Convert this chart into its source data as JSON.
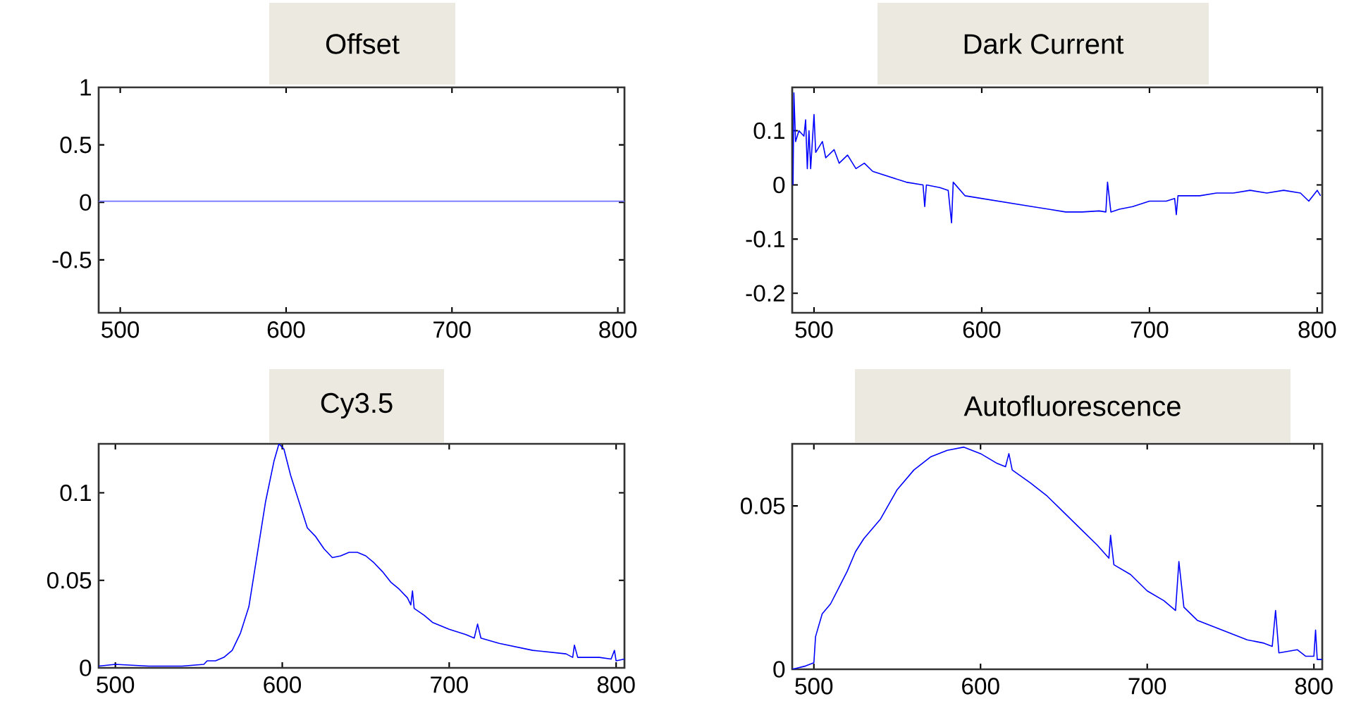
{
  "chart_data": [
    {
      "type": "line",
      "title": "Offset",
      "color": "#7070ff",
      "xlim": [
        487,
        804
      ],
      "ylim": [
        -0.96,
        1
      ],
      "xticks": [
        500,
        600,
        700,
        800
      ],
      "yticks": [
        -0.5,
        0,
        0.5,
        1
      ],
      "x": [
        487,
        804
      ],
      "values": [
        0.01,
        0.01
      ]
    },
    {
      "type": "line",
      "title": "Dark Current",
      "color": "#0000ff",
      "xlim": [
        487,
        803
      ],
      "ylim": [
        -0.236,
        0.18
      ],
      "xticks": [
        500,
        600,
        700,
        800
      ],
      "yticks": [
        -0.2,
        -0.1,
        0,
        0.1
      ],
      "x": [
        487.5,
        488,
        489,
        490,
        491,
        493,
        494,
        495,
        496,
        497,
        498,
        500,
        501,
        505,
        507,
        512,
        515,
        520,
        525,
        530,
        535,
        540,
        545,
        550,
        555,
        565,
        566,
        567,
        575,
        580,
        582,
        583,
        590,
        600,
        610,
        620,
        630,
        640,
        650,
        660,
        670,
        674,
        675,
        676,
        677,
        682,
        690,
        700,
        710,
        715,
        716,
        717,
        730,
        740,
        750,
        760,
        770,
        780,
        790,
        795,
        800,
        802
      ],
      "values": [
        0.0,
        0.17,
        0.08,
        null,
        0.1,
        null,
        0.09,
        0.12,
        0.03,
        0.1,
        0.03,
        0.13,
        0.06,
        0.08,
        0.05,
        0.065,
        0.04,
        0.055,
        0.03,
        0.04,
        0.025,
        0.02,
        0.015,
        0.01,
        0.005,
        0.0,
        -0.04,
        0.0,
        -0.005,
        -0.01,
        -0.07,
        0.005,
        -0.02,
        -0.025,
        -0.03,
        -0.035,
        -0.04,
        -0.045,
        -0.05,
        -0.05,
        -0.048,
        -0.05,
        0.005,
        null,
        -0.05,
        -0.045,
        -0.04,
        -0.03,
        -0.03,
        -0.025,
        -0.055,
        -0.02,
        -0.02,
        -0.015,
        -0.015,
        -0.01,
        -0.015,
        -0.01,
        -0.015,
        -0.03,
        -0.01,
        -0.02
      ]
    },
    {
      "type": "line",
      "title": "Cy3.5",
      "color": "#0000ff",
      "xlim": [
        490,
        805
      ],
      "ylim": [
        0,
        0.128
      ],
      "xticks": [
        500,
        600,
        700,
        800
      ],
      "yticks": [
        0,
        0.05,
        0.1
      ],
      "x": [
        490,
        500,
        520,
        540,
        553,
        555,
        560,
        565,
        570,
        575,
        580,
        585,
        590,
        595,
        598,
        601,
        605,
        610,
        615,
        620,
        625,
        630,
        635,
        640,
        645,
        650,
        655,
        660,
        665,
        670,
        675,
        677,
        678,
        679,
        685,
        690,
        700,
        710,
        715,
        717,
        719,
        730,
        740,
        750,
        760,
        770,
        774,
        775,
        777,
        790,
        797,
        799,
        800,
        805
      ],
      "values": [
        0.001,
        0.002,
        0.001,
        0.001,
        0.002,
        0.004,
        0.004,
        0.006,
        0.01,
        0.02,
        0.035,
        0.065,
        0.095,
        0.118,
        0.128,
        0.125,
        0.11,
        0.095,
        0.08,
        0.075,
        0.068,
        0.063,
        0.064,
        0.066,
        0.066,
        0.064,
        0.06,
        0.055,
        0.049,
        0.045,
        0.04,
        0.036,
        0.044,
        0.034,
        0.03,
        0.026,
        0.022,
        0.019,
        0.017,
        0.025,
        0.017,
        0.014,
        0.012,
        0.01,
        0.009,
        0.008,
        0.006,
        0.013,
        0.006,
        0.006,
        0.005,
        0.01,
        0.004,
        0.005
      ]
    },
    {
      "type": "line",
      "title": "Autofluorescence",
      "color": "#0000ff",
      "xlim": [
        487,
        805
      ],
      "ylim": [
        0,
        0.069
      ],
      "xticks": [
        500,
        600,
        700,
        800
      ],
      "yticks": [
        0,
        0.05
      ],
      "x": [
        487,
        495,
        500,
        501,
        505,
        510,
        515,
        520,
        525,
        530,
        540,
        550,
        560,
        570,
        580,
        590,
        600,
        610,
        615,
        617,
        619,
        630,
        640,
        650,
        660,
        670,
        677,
        678,
        680,
        690,
        700,
        710,
        717,
        719,
        722,
        730,
        740,
        750,
        760,
        770,
        775,
        777,
        779,
        790,
        795,
        800,
        801,
        802,
        805
      ],
      "values": [
        0,
        0.001,
        0.002,
        0.01,
        0.017,
        0.02,
        0.025,
        0.03,
        0.036,
        0.04,
        0.046,
        0.055,
        0.061,
        0.065,
        0.067,
        0.068,
        0.066,
        0.063,
        0.062,
        0.066,
        0.061,
        0.057,
        0.053,
        0.048,
        0.043,
        0.038,
        0.034,
        0.041,
        0.032,
        0.029,
        0.024,
        0.021,
        0.018,
        0.033,
        0.019,
        0.015,
        0.013,
        0.011,
        0.009,
        0.008,
        0.007,
        0.018,
        0.005,
        0.006,
        0.004,
        0.004,
        0.012,
        0.003,
        0.003
      ]
    }
  ]
}
